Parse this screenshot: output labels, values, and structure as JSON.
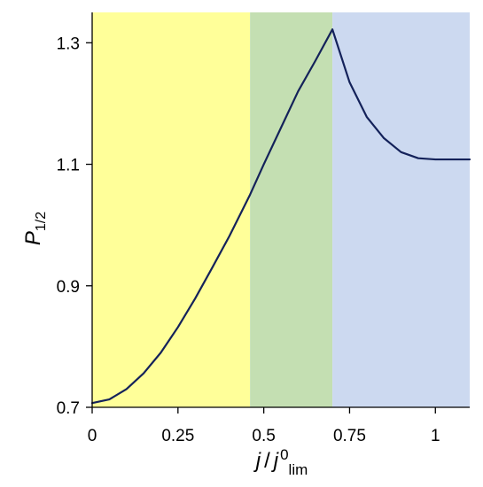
{
  "chart_data": {
    "type": "line",
    "title": "",
    "xlabel": {
      "j": "j",
      "slash": "/",
      "j0": "j",
      "sup": "0",
      "sub": "lim"
    },
    "ylabel": {
      "main": "P",
      "sub": "1/2"
    },
    "xlim": [
      0,
      1.1
    ],
    "ylim": [
      0.7,
      1.35
    ],
    "x_ticks": [
      0,
      0.25,
      0.5,
      0.75,
      1
    ],
    "x_tick_labels": [
      "0",
      "0.25",
      "0.5",
      "0.75",
      "1"
    ],
    "y_ticks": [
      0.7,
      0.9,
      1.1,
      1.3
    ],
    "y_tick_labels": [
      "0.7",
      "0.9",
      "1.1",
      "1.3"
    ],
    "grid": false,
    "regions": [
      {
        "x_start": 0,
        "x_end": 0.46,
        "color": "#ffff99"
      },
      {
        "x_start": 0.46,
        "x_end": 0.7,
        "color": "#c4dfb2"
      },
      {
        "x_start": 0.7,
        "x_end": 1.1,
        "color": "#ccd9f0"
      }
    ],
    "series": [
      {
        "color": "#14225a",
        "points": [
          [
            0,
            0.707
          ],
          [
            0.05,
            0.713
          ],
          [
            0.1,
            0.73
          ],
          [
            0.15,
            0.756
          ],
          [
            0.2,
            0.79
          ],
          [
            0.25,
            0.832
          ],
          [
            0.3,
            0.879
          ],
          [
            0.35,
            0.93
          ],
          [
            0.4,
            0.982
          ],
          [
            0.46,
            1.05
          ],
          [
            0.5,
            1.1
          ],
          [
            0.55,
            1.16
          ],
          [
            0.6,
            1.22
          ],
          [
            0.65,
            1.27
          ],
          [
            0.7,
            1.322
          ],
          [
            0.75,
            1.235
          ],
          [
            0.8,
            1.178
          ],
          [
            0.85,
            1.143
          ],
          [
            0.9,
            1.12
          ],
          [
            0.95,
            1.11
          ],
          [
            1.0,
            1.108
          ],
          [
            1.05,
            1.108
          ],
          [
            1.1,
            1.108
          ]
        ]
      }
    ]
  }
}
